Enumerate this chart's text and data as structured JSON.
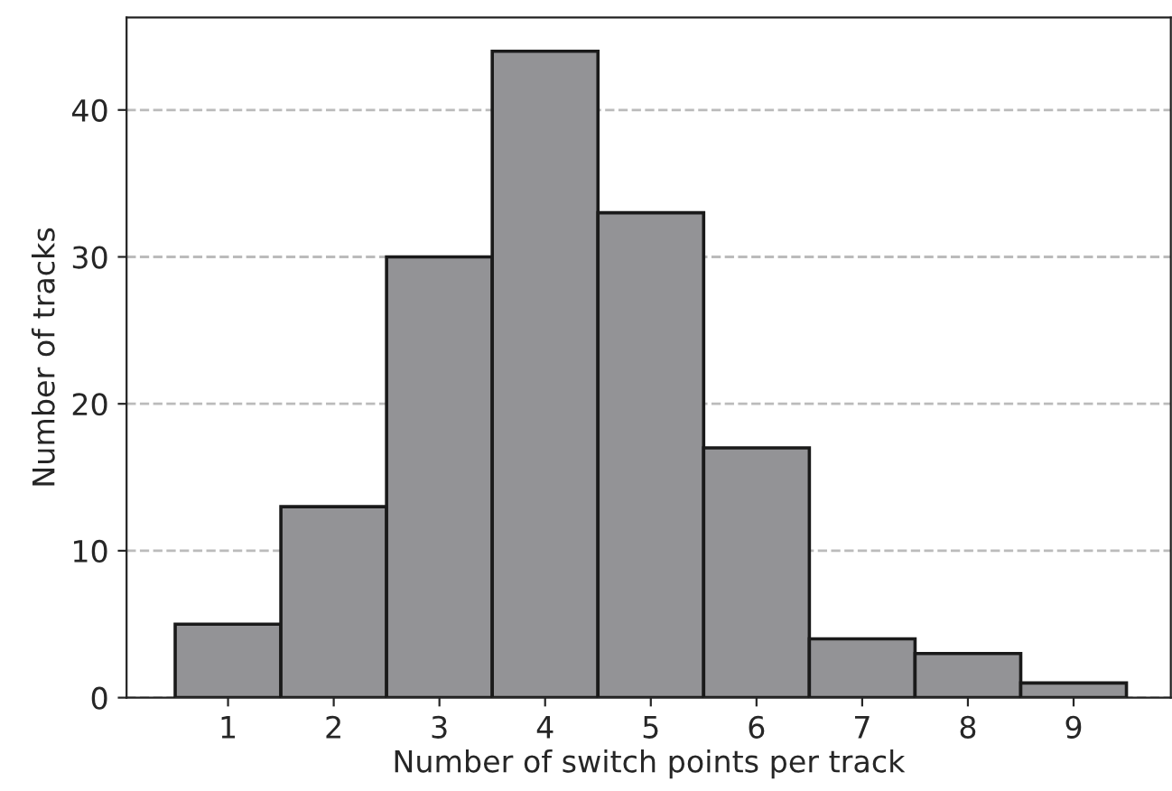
{
  "chart_data": {
    "type": "histogram",
    "xlabel": "Number of switch points per track",
    "ylabel": "Number of tracks",
    "bins": [
      0.5,
      1.5,
      2.5,
      3.5,
      4.5,
      5.5,
      6.5,
      7.5,
      8.5,
      9.5
    ],
    "values": [
      5,
      13,
      30,
      44,
      33,
      17,
      4,
      3,
      1
    ],
    "color": "#939396",
    "xlim": [
      0.04,
      9.92
    ],
    "xticks": [
      1,
      2,
      3,
      4,
      5,
      6,
      7,
      8,
      9
    ],
    "ylim": [
      0,
      46.3
    ],
    "yticks": [
      0,
      10,
      20,
      30,
      40
    ],
    "grid": "y"
  }
}
